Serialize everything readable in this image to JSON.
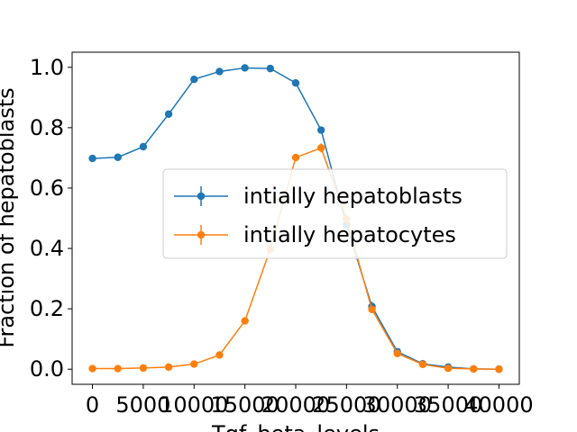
{
  "chart_data": {
    "type": "line",
    "xlabel": "Tgf_beta_levels",
    "ylabel": "Fraction of hepatoblasts",
    "xlim": [
      -2000,
      42000
    ],
    "ylim": [
      -0.05,
      1.05
    ],
    "x_ticks": [
      0,
      5000,
      10000,
      15000,
      20000,
      25000,
      30000,
      35000,
      40000
    ],
    "x_tick_labels": [
      "0",
      "5000",
      "10000",
      "15000",
      "20000",
      "25000",
      "30000",
      "35000",
      "40000"
    ],
    "y_ticks": [
      0.0,
      0.2,
      0.4,
      0.6,
      0.8,
      1.0
    ],
    "y_tick_labels": [
      "0.0",
      "0.2",
      "0.4",
      "0.6",
      "0.8",
      "1.0"
    ],
    "grid": false,
    "legend_position": "center-right",
    "x": [
      0,
      2500,
      5000,
      7500,
      10000,
      12500,
      15000,
      17500,
      20000,
      22500,
      25000,
      27500,
      30000,
      32500,
      35000,
      37500,
      40000
    ],
    "series": [
      {
        "name": "intially hepatoblasts",
        "color": "#1f77b4",
        "values": [
          0.698,
          0.702,
          0.737,
          0.845,
          0.96,
          0.986,
          0.998,
          0.996,
          0.948,
          0.792,
          0.478,
          0.208,
          0.058,
          0.018,
          0.007,
          0.001,
          0.0
        ],
        "errors": [
          0.004,
          0.004,
          0.005,
          0.005,
          0.004,
          0.003,
          0.002,
          0.002,
          0.004,
          0.006,
          0.01,
          0.015,
          0.008,
          0.004,
          0.003,
          0.001,
          0.001
        ]
      },
      {
        "name": "intially hepatocytes",
        "color": "#ff7f0e",
        "values": [
          0.002,
          0.002,
          0.004,
          0.007,
          0.017,
          0.047,
          0.16,
          0.398,
          0.701,
          0.733,
          0.497,
          0.198,
          0.052,
          0.016,
          0.003,
          0.001,
          0.0
        ],
        "errors": [
          0.001,
          0.001,
          0.002,
          0.002,
          0.003,
          0.005,
          0.008,
          0.015,
          0.01,
          0.015,
          0.015,
          0.012,
          0.006,
          0.003,
          0.002,
          0.001,
          0.001
        ]
      }
    ]
  }
}
